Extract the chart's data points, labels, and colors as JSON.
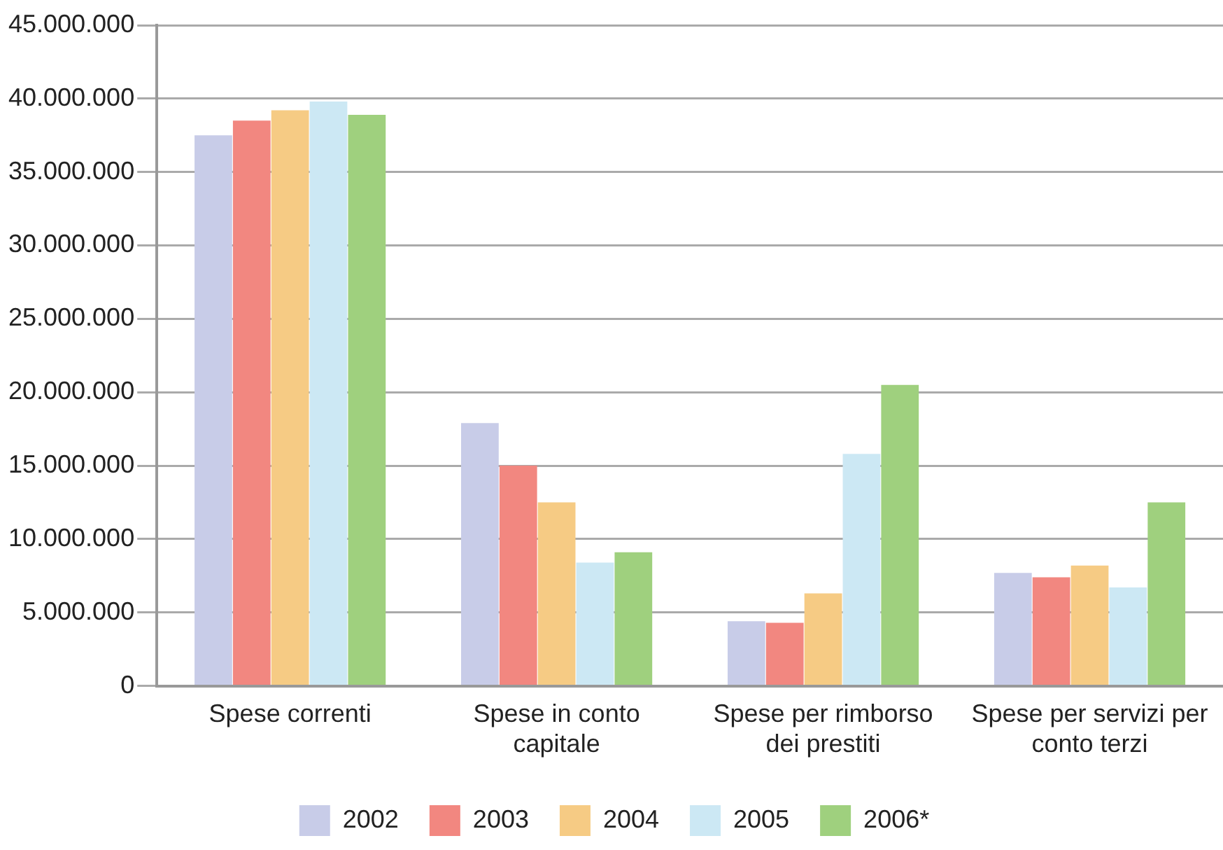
{
  "chart_data": {
    "type": "bar",
    "categories": [
      "Spese correnti",
      "Spese in conto capitale",
      "Spese per rimborso dei prestiti",
      "Spese per servizi per conto terzi"
    ],
    "series": [
      {
        "name": "2002",
        "color": "#c8cce8",
        "values": [
          37500000,
          17900000,
          4400000,
          7700000
        ]
      },
      {
        "name": "2003",
        "color": "#f28780",
        "values": [
          38500000,
          15000000,
          4300000,
          7400000
        ]
      },
      {
        "name": "2004",
        "color": "#f6cb84",
        "values": [
          39200000,
          12500000,
          6300000,
          8200000
        ]
      },
      {
        "name": "2005",
        "color": "#cce8f4",
        "values": [
          39800000,
          8400000,
          15800000,
          6700000
        ]
      },
      {
        "name": "2006*",
        "color": "#9fd07e",
        "values": [
          38900000,
          9100000,
          20500000,
          12500000
        ]
      }
    ],
    "ylim": [
      0,
      45000000
    ],
    "yticks": [
      {
        "value": 0,
        "label": "0"
      },
      {
        "value": 5000000,
        "label": "5.000.000"
      },
      {
        "value": 10000000,
        "label": "10.000.000"
      },
      {
        "value": 15000000,
        "label": "15.000.000"
      },
      {
        "value": 20000000,
        "label": "20.000.000"
      },
      {
        "value": 25000000,
        "label": "25.000.000"
      },
      {
        "value": 30000000,
        "label": "30.000.000"
      },
      {
        "value": 35000000,
        "label": "35.000.000"
      },
      {
        "value": 40000000,
        "label": "40.000.000"
      },
      {
        "value": 45000000,
        "label": "45.000.000"
      }
    ],
    "grid": "y",
    "legend": "bottom"
  }
}
